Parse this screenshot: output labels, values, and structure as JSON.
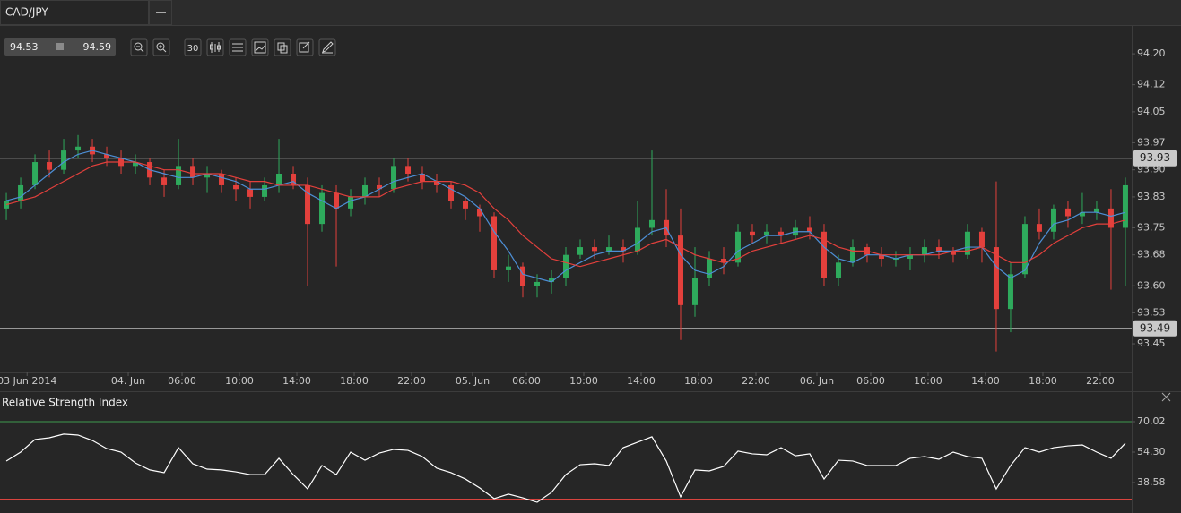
{
  "tab": {
    "symbol": "CAD/JPY"
  },
  "toolbar": {
    "bid": "94.53",
    "ask": "94.59",
    "interval": "30"
  },
  "chart_data": [
    {
      "type": "candlestick",
      "x": [
        17.75,
        18.75,
        19.75,
        20.75,
        21.75,
        22.75,
        23.75,
        24.75,
        25.75,
        26.75,
        27.75,
        28.75,
        29.75,
        30.75,
        31.75,
        32.75,
        33.75,
        34.75,
        35.75,
        36.75,
        37.75,
        38.75,
        39.75,
        40.75,
        41.75,
        42.75,
        43.75,
        44.75,
        45.75,
        46.75,
        47.75,
        48.75,
        49.75,
        50.75,
        51.75,
        52.75,
        53.75,
        54.75,
        55.75,
        56.75,
        57.75,
        58.75,
        59.75,
        60.75,
        61.75,
        62.75,
        63.75,
        64.75,
        65.75,
        66.75,
        67.75,
        68.75,
        69.75,
        70.75,
        71.75,
        72.75,
        73.75,
        74.75,
        75.75,
        76.75,
        77.75,
        78.75,
        79.75,
        80.75,
        81.75,
        82.75,
        83.75,
        84.75,
        85.75,
        86.75,
        87.75,
        88.75,
        89.75,
        90.75,
        91.75,
        92.75,
        93.75,
        94.75,
        95.75
      ],
      "open": [
        93.8,
        93.82,
        93.86,
        93.92,
        93.9,
        93.95,
        93.96,
        93.94,
        93.93,
        93.91,
        93.92,
        93.88,
        93.86,
        93.91,
        93.88,
        93.89,
        93.86,
        93.85,
        93.83,
        93.86,
        93.89,
        93.86,
        93.76,
        93.84,
        93.8,
        93.83,
        93.86,
        93.85,
        93.91,
        93.89,
        93.87,
        93.86,
        93.82,
        93.8,
        93.78,
        93.64,
        93.65,
        93.6,
        93.61,
        93.62,
        93.68,
        93.7,
        93.69,
        93.7,
        93.69,
        93.75,
        93.77,
        93.73,
        93.55,
        93.62,
        93.67,
        93.66,
        93.74,
        93.73,
        93.74,
        93.73,
        93.75,
        93.74,
        93.62,
        93.66,
        93.7,
        93.68,
        93.67,
        93.67,
        93.68,
        93.7,
        93.69,
        93.68,
        93.74,
        93.7,
        93.54,
        93.63,
        93.76,
        93.74,
        93.8,
        93.78,
        93.79,
        93.8,
        93.75
      ],
      "high": [
        93.84,
        93.88,
        93.94,
        93.95,
        93.98,
        93.99,
        93.98,
        93.96,
        93.95,
        93.94,
        93.93,
        93.9,
        93.98,
        93.93,
        93.91,
        93.9,
        93.88,
        93.87,
        93.88,
        93.98,
        93.91,
        93.88,
        93.86,
        93.86,
        93.85,
        93.88,
        93.88,
        93.93,
        93.93,
        93.91,
        93.89,
        93.87,
        93.83,
        93.81,
        93.79,
        93.68,
        93.66,
        93.63,
        93.64,
        93.7,
        93.72,
        93.72,
        93.73,
        93.72,
        93.82,
        93.95,
        93.85,
        93.8,
        93.7,
        93.69,
        93.7,
        93.76,
        93.76,
        93.76,
        93.75,
        93.77,
        93.78,
        93.76,
        93.68,
        93.72,
        93.71,
        93.7,
        93.69,
        93.7,
        93.72,
        93.72,
        93.7,
        93.76,
        93.75,
        93.87,
        93.66,
        93.78,
        93.8,
        93.81,
        93.82,
        93.84,
        93.82,
        93.85,
        93.88
      ],
      "low": [
        93.77,
        93.8,
        93.85,
        93.88,
        93.89,
        93.93,
        93.92,
        93.91,
        93.89,
        93.89,
        93.86,
        93.83,
        93.85,
        93.86,
        93.84,
        93.84,
        93.82,
        93.8,
        93.82,
        93.84,
        93.85,
        93.6,
        93.74,
        93.65,
        93.78,
        93.81,
        93.83,
        93.84,
        93.87,
        93.85,
        93.84,
        93.8,
        93.77,
        93.74,
        93.62,
        93.61,
        93.57,
        93.57,
        93.58,
        93.6,
        93.67,
        93.67,
        93.68,
        93.66,
        93.68,
        93.73,
        93.7,
        93.46,
        93.52,
        93.6,
        93.63,
        93.65,
        93.71,
        93.71,
        93.71,
        93.72,
        93.72,
        93.6,
        93.6,
        93.65,
        93.66,
        93.65,
        93.65,
        93.64,
        93.66,
        93.67,
        93.66,
        93.67,
        93.66,
        93.43,
        93.48,
        93.62,
        93.72,
        93.72,
        93.75,
        93.76,
        93.77,
        93.59,
        93.6
      ],
      "close": [
        93.82,
        93.86,
        93.92,
        93.9,
        93.95,
        93.96,
        93.94,
        93.93,
        93.91,
        93.92,
        93.88,
        93.86,
        93.91,
        93.88,
        93.89,
        93.86,
        93.85,
        93.83,
        93.86,
        93.89,
        93.86,
        93.76,
        93.84,
        93.8,
        93.83,
        93.86,
        93.85,
        93.91,
        93.89,
        93.87,
        93.86,
        93.82,
        93.8,
        93.78,
        93.64,
        93.65,
        93.6,
        93.61,
        93.62,
        93.68,
        93.7,
        93.69,
        93.7,
        93.69,
        93.75,
        93.77,
        93.73,
        93.55,
        93.62,
        93.67,
        93.66,
        93.74,
        93.73,
        93.74,
        93.73,
        93.75,
        93.74,
        93.62,
        93.66,
        93.7,
        93.68,
        93.67,
        93.67,
        93.68,
        93.7,
        93.69,
        93.68,
        93.74,
        93.7,
        93.54,
        93.63,
        93.76,
        93.74,
        93.8,
        93.78,
        93.79,
        93.8,
        93.75,
        93.86
      ],
      "up_color": "#2eaa5c",
      "down_color": "#e3403c",
      "moving_averages": [
        {
          "color": "#4d8fd6",
          "values": [
            93.82,
            93.83,
            93.86,
            93.89,
            93.92,
            93.94,
            93.95,
            93.94,
            93.93,
            93.92,
            93.9,
            93.89,
            93.88,
            93.88,
            93.89,
            93.88,
            93.87,
            93.85,
            93.85,
            93.86,
            93.87,
            93.84,
            93.82,
            93.8,
            93.82,
            93.83,
            93.85,
            93.87,
            93.88,
            93.89,
            93.87,
            93.85,
            93.83,
            93.8,
            93.74,
            93.69,
            93.63,
            93.62,
            93.61,
            93.64,
            93.66,
            93.68,
            93.69,
            93.69,
            93.71,
            93.74,
            93.75,
            93.68,
            93.64,
            93.63,
            93.65,
            93.69,
            93.71,
            93.73,
            93.73,
            93.74,
            93.74,
            93.7,
            93.67,
            93.66,
            93.68,
            93.68,
            93.67,
            93.68,
            93.68,
            93.69,
            93.69,
            93.7,
            93.7,
            93.65,
            93.62,
            93.64,
            93.71,
            93.76,
            93.77,
            93.79,
            93.79,
            93.78,
            93.79
          ]
        },
        {
          "color": "#e3403c",
          "values": [
            93.81,
            93.82,
            93.83,
            93.85,
            93.87,
            93.89,
            93.91,
            93.92,
            93.92,
            93.92,
            93.91,
            93.9,
            93.9,
            93.89,
            93.89,
            93.89,
            93.88,
            93.87,
            93.87,
            93.86,
            93.86,
            93.86,
            93.85,
            93.84,
            93.83,
            93.83,
            93.83,
            93.85,
            93.86,
            93.87,
            93.87,
            93.87,
            93.86,
            93.84,
            93.8,
            93.77,
            93.73,
            93.7,
            93.67,
            93.66,
            93.65,
            93.66,
            93.67,
            93.68,
            93.69,
            93.71,
            93.72,
            93.7,
            93.68,
            93.67,
            93.66,
            93.67,
            93.69,
            93.7,
            93.71,
            93.72,
            93.73,
            93.72,
            93.7,
            93.69,
            93.69,
            93.68,
            93.68,
            93.68,
            93.68,
            93.68,
            93.69,
            93.69,
            93.7,
            93.68,
            93.66,
            93.66,
            93.68,
            93.71,
            93.73,
            93.75,
            93.76,
            93.76,
            93.77
          ]
        }
      ],
      "price_lines": [
        93.93,
        93.49
      ],
      "xlim": [
        17.31,
        96.19
      ],
      "xticks": [
        {
          "value": 19.2,
          "label": "03 Jun 2014"
        },
        {
          "value": 26.25,
          "label": "04. Jun"
        },
        {
          "value": 30,
          "label": "06:00"
        },
        {
          "value": 34,
          "label": "10:00"
        },
        {
          "value": 38,
          "label": "14:00"
        },
        {
          "value": 42,
          "label": "18:00"
        },
        {
          "value": 46,
          "label": "22:00"
        },
        {
          "value": 50.25,
          "label": "05. Jun"
        },
        {
          "value": 54,
          "label": "06:00"
        },
        {
          "value": 58,
          "label": "10:00"
        },
        {
          "value": 62,
          "label": "14:00"
        },
        {
          "value": 66,
          "label": "18:00"
        },
        {
          "value": 70,
          "label": "22:00"
        },
        {
          "value": 74.25,
          "label": "06. Jun"
        },
        {
          "value": 78,
          "label": "06:00"
        },
        {
          "value": 82,
          "label": "10:00"
        },
        {
          "value": 86,
          "label": "14:00"
        },
        {
          "value": 90,
          "label": "18:00"
        },
        {
          "value": 94,
          "label": "22:00"
        }
      ],
      "ylim": [
        93.376,
        94.272
      ],
      "yticks": [
        {
          "value": 94.2,
          "label": "94.20"
        },
        94.12,
        94.05,
        93.97,
        {
          "value": 93.9,
          "label": "93.90"
        },
        93.83,
        93.75,
        93.68,
        {
          "value": 93.6,
          "label": "93.60"
        },
        93.53,
        93.45
      ]
    },
    {
      "type": "line",
      "title": "Relative Strength Index",
      "x": [
        17.75,
        18.75,
        19.75,
        20.75,
        21.75,
        22.75,
        23.75,
        24.75,
        25.75,
        26.75,
        27.75,
        28.75,
        29.75,
        30.75,
        31.75,
        32.75,
        33.75,
        34.75,
        35.75,
        36.75,
        37.75,
        38.75,
        39.75,
        40.75,
        41.75,
        42.75,
        43.75,
        44.75,
        45.75,
        46.75,
        47.75,
        48.75,
        49.75,
        50.75,
        51.75,
        52.75,
        53.75,
        54.75,
        55.75,
        56.75,
        57.75,
        58.75,
        59.75,
        60.75,
        61.75,
        62.75,
        63.75,
        64.75,
        65.75,
        66.75,
        67.75,
        68.75,
        69.75,
        70.75,
        71.75,
        72.75,
        73.75,
        74.75,
        75.75,
        76.75,
        77.75,
        78.75,
        79.75,
        80.75,
        81.75,
        82.75,
        83.75,
        84.75,
        85.75,
        86.75,
        87.75,
        88.75,
        89.75,
        90.75,
        91.75,
        92.75,
        93.75,
        94.75,
        95.75
      ],
      "values": [
        49.7,
        54.3,
        60.8,
        61.7,
        63.6,
        63.1,
        60.3,
        56.1,
        54.3,
        48.7,
        45.1,
        43.7,
        56.6,
        48.3,
        45.5,
        45.1,
        44.1,
        42.7,
        42.7,
        51.1,
        42.7,
        35.3,
        47.4,
        42.7,
        54.3,
        50.1,
        53.8,
        55.7,
        55.2,
        52.0,
        46.0,
        43.7,
        40.4,
        35.8,
        30.3,
        32.6,
        30.7,
        28.4,
        33.5,
        42.7,
        47.8,
        48.3,
        47.4,
        56.6,
        59.4,
        62.2,
        49.7,
        31.2,
        45.1,
        44.6,
        46.9,
        54.8,
        53.4,
        52.9,
        56.6,
        52.4,
        53.4,
        40.4,
        50.1,
        49.7,
        47.4,
        47.4,
        47.4,
        51.1,
        52.0,
        50.6,
        54.3,
        52.0,
        51.1,
        35.3,
        47.4,
        56.6,
        54.3,
        56.6,
        57.5,
        58.0,
        54.3,
        51.1,
        58.9
      ],
      "color": "#ffffff",
      "levels": [
        70,
        30
      ],
      "level_colors": [
        "#3f9a4f",
        "#d9443f"
      ],
      "xlim": [
        17.31,
        96.19
      ],
      "ylim": [
        22.86,
        85.28
      ],
      "yticks": [
        {
          "value": 70.02,
          "label": "70.02"
        },
        {
          "value": 54.3,
          "label": "54.30"
        },
        {
          "value": 38.58,
          "label": "38.58"
        }
      ]
    }
  ]
}
